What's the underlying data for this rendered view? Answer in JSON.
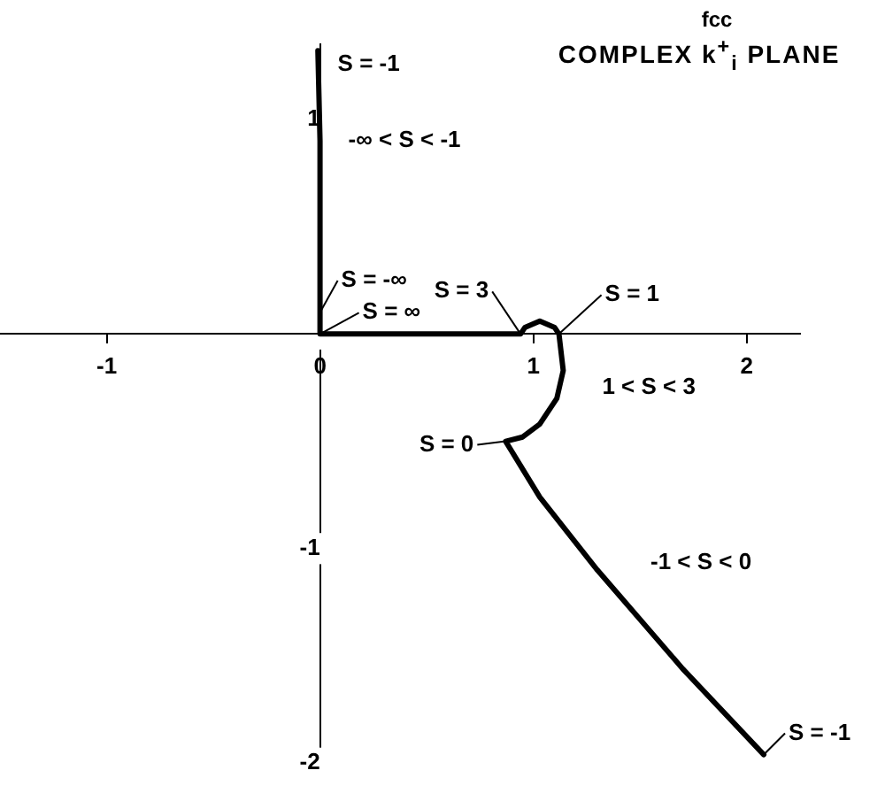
{
  "chart_data": {
    "type": "line",
    "title": "fcc",
    "subtitle": "COMPLEX k$^{+}$$_{i}$ PLANE",
    "series": [
      {
        "color": "#000000",
        "x": [
          -0.01,
          0,
          0,
          0.3,
          0.6,
          0.94,
          0.96,
          1.03,
          1.1,
          1.12,
          1.14,
          1.11,
          1.03,
          0.95,
          0.87,
          1.03,
          1.3,
          1.7,
          2.08
        ],
        "values": [
          1.32,
          0.9,
          0,
          0,
          0,
          0,
          0.03,
          0.06,
          0.03,
          0,
          -0.17,
          -0.3,
          -0.42,
          -0.48,
          -0.5,
          -0.76,
          -1.1,
          -1.56,
          -1.96
        ]
      }
    ],
    "xlim": [
      -1.5,
      2.25
    ],
    "ylim": [
      -2.05,
      1.35
    ],
    "xticks": [
      -1,
      0,
      1,
      2
    ],
    "yticks": [
      -2,
      -1,
      {
        "value": 0,
        "label": null
      },
      1
    ],
    "grid": false,
    "legend": false,
    "marker": "none",
    "line_style": "solid",
    "annotations": [
      {
        "text": "S = -1",
        "x": 0,
        "y": 1.32
      },
      {
        "text": "-∞ < S < -1",
        "x": 0,
        "y": 0.9
      },
      {
        "text": "S = -∞",
        "x": 0,
        "y": 0.1
      },
      {
        "text": "S = ∞",
        "x": 0,
        "y": 0
      },
      {
        "text": "S = 3",
        "x": 0.94,
        "y": 0
      },
      {
        "text": "S = 1",
        "x": 1.12,
        "y": 0
      },
      {
        "text": "1 < S < 3",
        "x": 1.14,
        "y": -0.2
      },
      {
        "text": "S = 0",
        "x": 0.87,
        "y": -0.5
      },
      {
        "text": "-1 < S < 0",
        "x": 1.3,
        "y": -1.1
      },
      {
        "text": "S = -1",
        "x": 2.08,
        "y": -1.96
      }
    ]
  }
}
